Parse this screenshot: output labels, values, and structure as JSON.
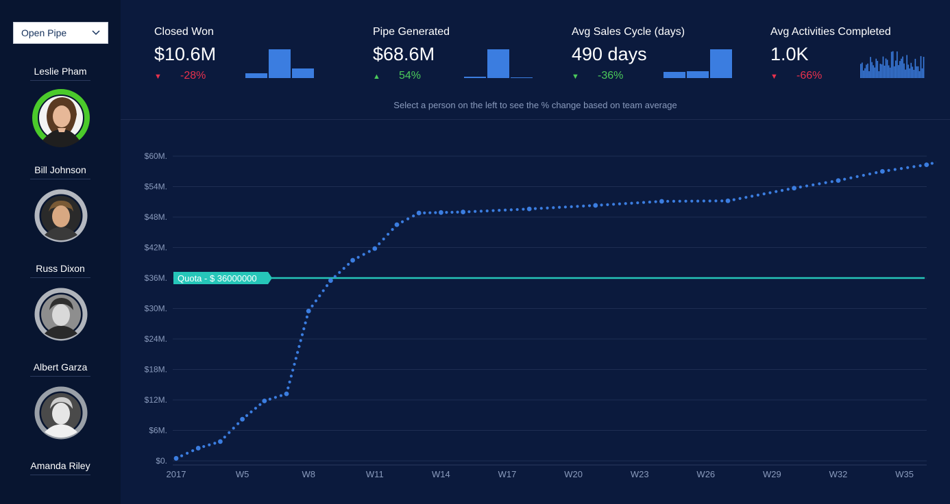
{
  "filter": {
    "selected": "Open Pipe"
  },
  "people": [
    {
      "name": "Leslie Pham"
    },
    {
      "name": "Bill Johnson"
    },
    {
      "name": "Russ Dixon"
    },
    {
      "name": "Albert Garza"
    },
    {
      "name": "Amanda Riley"
    }
  ],
  "kpis": [
    {
      "title": "Closed Won",
      "value": "$10.6M",
      "change": "-28%",
      "direction": "down",
      "bars": [
        0.17,
        1.0,
        0.33
      ]
    },
    {
      "title": "Pipe Generated",
      "value": "$68.6M",
      "change": "54%",
      "direction": "up",
      "bars": [
        0.05,
        1.0,
        0.02
      ]
    },
    {
      "title": "Avg Sales Cycle (days)",
      "value": "490 days",
      "change": "-36%",
      "direction": "down",
      "bars": [
        0.2,
        0.22,
        1.0
      ]
    },
    {
      "title": "Avg Activities Completed",
      "value": "1.0K",
      "change": "-66%",
      "direction": "down"
    }
  ],
  "hint": "Select a person on the left to see the % change based on team average",
  "colors": {
    "background": "#0b1a3d",
    "sidebar": "#081530",
    "series": "#3b7de0",
    "quota": "#26c6b9",
    "negative": "#e8314d",
    "positive": "#4bca5b"
  },
  "chart_data": {
    "type": "line",
    "x_ticks": [
      "2017",
      "W5",
      "W8",
      "W11",
      "W14",
      "W17",
      "W20",
      "W23",
      "W26",
      "W29",
      "W32",
      "W35"
    ],
    "y_ticks": [
      "$0.",
      "$6M.",
      "$12M.",
      "$18M.",
      "$24M.",
      "$30M.",
      "$36M.",
      "$42M.",
      "$48M.",
      "$54M.",
      "$60M."
    ],
    "ylim": [
      0,
      60
    ],
    "quota": {
      "label": "Quota - $ 36000000",
      "value": 36
    },
    "series": [
      {
        "x": [
          1,
          2,
          3,
          4,
          5,
          6,
          7,
          8,
          9,
          10,
          11,
          12,
          13,
          14,
          17,
          20,
          23,
          26,
          29,
          31,
          33,
          35,
          36
        ],
        "values": [
          0.5,
          2.5,
          3.8,
          8.2,
          11.8,
          13.2,
          29.5,
          35.5,
          39.5,
          41.8,
          46.5,
          48.8,
          48.9,
          49.0,
          49.6,
          50.3,
          51.1,
          51.2,
          53.7,
          55.2,
          57.0,
          58.3,
          59.4
        ]
      }
    ]
  }
}
